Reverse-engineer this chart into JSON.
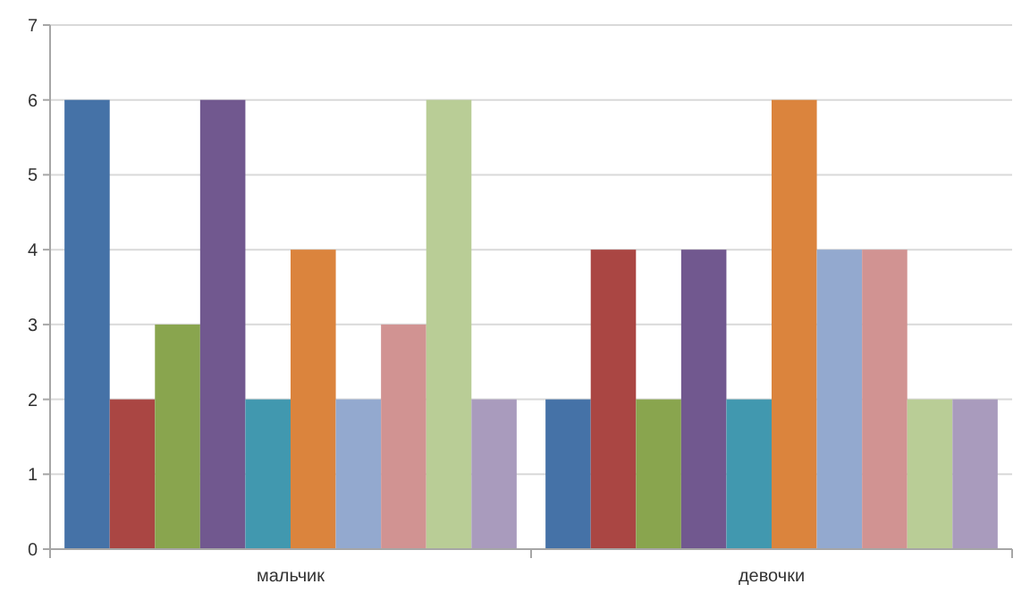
{
  "chart_data": {
    "type": "bar",
    "categories": [
      "мальчик",
      "девочки"
    ],
    "series": [
      {
        "color": "#4572a7",
        "values": [
          6,
          2
        ]
      },
      {
        "color": "#aa4643",
        "values": [
          2,
          4
        ]
      },
      {
        "color": "#89a54e",
        "values": [
          3,
          2
        ]
      },
      {
        "color": "#71588f",
        "values": [
          6,
          4
        ]
      },
      {
        "color": "#4198af",
        "values": [
          2,
          2
        ]
      },
      {
        "color": "#db843d",
        "values": [
          4,
          6
        ]
      },
      {
        "color": "#93a9cf",
        "values": [
          2,
          4
        ]
      },
      {
        "color": "#d19392",
        "values": [
          3,
          4
        ]
      },
      {
        "color": "#b9cd96",
        "values": [
          6,
          2
        ]
      },
      {
        "color": "#a99bbd",
        "values": [
          2,
          2
        ]
      }
    ],
    "ylim": [
      0,
      7
    ],
    "yticks": [
      0,
      1,
      2,
      3,
      4,
      5,
      6,
      7
    ],
    "grid": "y"
  }
}
